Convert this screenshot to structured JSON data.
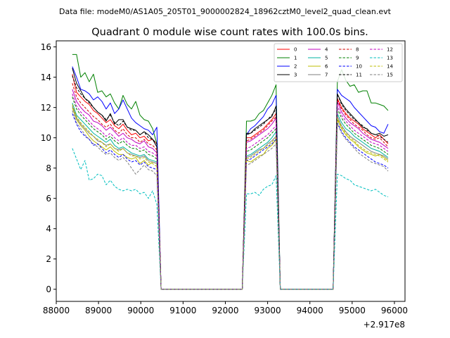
{
  "chart_data": {
    "type": "line",
    "suptitle": "Data file: modeM0/AS1A05_205T01_9000002824_18962cztM0_level2_quad_clean.evt",
    "title": "Quadrant 0 module wise count rates with 100.0s bins.",
    "xlabel": "",
    "ylabel": "",
    "x_offset_label": "+2.917e8",
    "xlim": [
      88000,
      96250
    ],
    "ylim": [
      -0.8,
      16.4
    ],
    "xticks": [
      88000,
      89000,
      90000,
      91000,
      92000,
      93000,
      94000,
      95000,
      96000
    ],
    "xtick_labels": [
      "88000",
      "89000",
      "90000",
      "91000",
      "92000",
      "93000",
      "94000",
      "95000",
      "96000"
    ],
    "yticks": [
      0,
      2,
      4,
      6,
      8,
      10,
      12,
      14,
      16
    ],
    "ytick_labels": [
      "0",
      "2",
      "4",
      "6",
      "8",
      "10",
      "12",
      "14",
      "16"
    ],
    "legend_position": "top-right",
    "segments": [
      {
        "start": 88380,
        "end": 90380,
        "length": 21
      },
      {
        "start": 92500,
        "end": 93200,
        "length": 8
      },
      {
        "start": 94650,
        "end": 95850,
        "length": 13
      }
    ],
    "series": [
      {
        "name": "0",
        "color": "#ff0000",
        "dash": "solid",
        "seg1": [
          14.2,
          13.0,
          12.7,
          12.4,
          12.2,
          11.8,
          11.6,
          11.3,
          11.0,
          11.2,
          10.8,
          10.6,
          10.9,
          10.5,
          10.2,
          10.3,
          10.0,
          10.1,
          9.8,
          9.9,
          9.6
        ],
        "seg2": [
          10.0,
          10.0,
          10.2,
          10.4,
          10.6,
          10.9,
          11.2,
          11.6
        ],
        "seg3": [
          12.6,
          12.0,
          11.6,
          11.3,
          11.1,
          10.9,
          10.6,
          10.4,
          10.2,
          10.0,
          10.2,
          9.9,
          9.6
        ]
      },
      {
        "name": "1",
        "color": "#008000",
        "dash": "solid",
        "seg1": [
          15.5,
          15.5,
          14.0,
          14.3,
          13.7,
          14.2,
          13.0,
          13.1,
          12.7,
          12.9,
          12.3,
          11.9,
          12.8,
          12.2,
          11.9,
          12.4,
          11.5,
          11.2,
          11.1,
          10.6,
          9.6
        ],
        "seg2": [
          11.1,
          11.1,
          11.2,
          11.6,
          11.8,
          12.3,
          12.8,
          13.5
        ],
        "seg3": [
          13.7,
          14.5,
          13.8,
          13.4,
          13.5,
          13.0,
          13.1,
          13.1,
          12.3,
          12.3,
          12.2,
          12.1,
          11.8
        ]
      },
      {
        "name": "2",
        "color": "#0000ff",
        "dash": "solid",
        "seg1": [
          14.7,
          14.0,
          13.2,
          13.1,
          12.9,
          12.5,
          12.7,
          12.4,
          11.9,
          12.3,
          11.6,
          11.9,
          12.5,
          11.9,
          11.3,
          11.0,
          10.8,
          10.6,
          10.5,
          10.2,
          10.7
        ],
        "seg2": [
          10.2,
          10.6,
          10.8,
          11.1,
          11.4,
          11.9,
          12.2,
          12.8
        ],
        "seg3": [
          13.2,
          12.8,
          12.6,
          12.4,
          12.0,
          11.7,
          11.4,
          11.1,
          10.8,
          10.7,
          10.4,
          10.3,
          10.9
        ]
      },
      {
        "name": "3",
        "color": "#000000",
        "dash": "solid",
        "seg1": [
          14.6,
          13.6,
          13.1,
          12.6,
          12.4,
          12.0,
          11.7,
          11.5,
          11.1,
          11.6,
          10.9,
          11.2,
          11.2,
          10.7,
          10.6,
          10.5,
          10.2,
          10.4,
          10.2,
          9.9,
          9.4
        ],
        "seg2": [
          10.3,
          10.3,
          10.6,
          10.8,
          11.0,
          11.2,
          11.4,
          12.1
        ],
        "seg3": [
          12.9,
          12.3,
          11.9,
          11.6,
          11.3,
          11.0,
          10.7,
          10.6,
          10.3,
          10.2,
          10.3,
          10.1,
          10.2
        ]
      },
      {
        "name": "4",
        "color": "#c000c0",
        "dash": "solid",
        "seg1": [
          13.2,
          12.4,
          12.0,
          11.7,
          11.5,
          11.1,
          11.0,
          10.8,
          10.5,
          10.7,
          10.4,
          10.1,
          10.3,
          10.0,
          9.9,
          9.7,
          9.6,
          9.8,
          9.4,
          9.3,
          9.0
        ],
        "seg2": [
          9.7,
          9.8,
          10.0,
          10.2,
          10.4,
          10.6,
          10.9,
          11.3
        ],
        "seg3": [
          12.4,
          11.7,
          11.3,
          11.0,
          10.8,
          10.6,
          10.3,
          10.1,
          9.9,
          9.8,
          9.7,
          9.5,
          9.3
        ]
      },
      {
        "name": "5",
        "color": "#00b3a0",
        "dash": "solid",
        "seg1": [
          12.3,
          11.5,
          11.2,
          10.9,
          10.6,
          10.3,
          10.1,
          9.9,
          9.7,
          9.9,
          9.5,
          9.3,
          9.4,
          9.2,
          9.0,
          8.9,
          8.8,
          8.9,
          8.6,
          8.5,
          8.4
        ],
        "seg2": [
          8.8,
          8.9,
          9.1,
          9.3,
          9.5,
          9.7,
          10.0,
          10.4
        ],
        "seg3": [
          11.6,
          11.0,
          10.6,
          10.4,
          10.1,
          9.9,
          9.7,
          9.5,
          9.3,
          9.2,
          9.1,
          8.9,
          8.7
        ]
      },
      {
        "name": "6",
        "color": "#bdbd00",
        "dash": "solid",
        "seg1": [
          12.0,
          11.2,
          10.8,
          10.5,
          10.1,
          9.8,
          9.6,
          9.4,
          9.2,
          9.4,
          9.1,
          8.9,
          8.9,
          8.7,
          8.6,
          8.7,
          8.3,
          8.5,
          8.2,
          8.4,
          8.3
        ],
        "seg2": [
          8.5,
          8.4,
          8.6,
          8.8,
          8.9,
          9.3,
          9.5,
          9.9
        ],
        "seg3": [
          11.2,
          10.6,
          10.2,
          9.9,
          9.7,
          9.4,
          9.2,
          9.0,
          8.9,
          8.8,
          8.9,
          8.7,
          8.5
        ]
      },
      {
        "name": "7",
        "color": "#7f7f7f",
        "dash": "solid",
        "seg1": [
          12.1,
          11.3,
          10.9,
          10.6,
          10.3,
          10.1,
          9.8,
          9.7,
          9.5,
          9.6,
          9.3,
          9.2,
          9.3,
          9.0,
          8.9,
          8.8,
          8.7,
          8.8,
          8.5,
          8.4,
          8.3
        ],
        "seg2": [
          8.7,
          8.8,
          9.0,
          9.2,
          9.3,
          9.6,
          9.8,
          10.1
        ],
        "seg3": [
          11.4,
          10.8,
          10.4,
          10.1,
          9.9,
          9.7,
          9.5,
          9.3,
          9.1,
          9.0,
          8.9,
          8.8,
          8.6
        ]
      },
      {
        "name": "8",
        "color": "#d00000",
        "dash": "dashed",
        "seg1": [
          13.6,
          12.7,
          12.3,
          12.0,
          11.7,
          11.4,
          11.2,
          10.9,
          10.7,
          10.9,
          10.5,
          10.3,
          10.6,
          10.2,
          10.0,
          10.0,
          9.7,
          9.9,
          9.6,
          9.5,
          9.2
        ],
        "seg2": [
          9.8,
          9.9,
          10.1,
          10.3,
          10.5,
          10.8,
          11.1,
          11.4
        ],
        "seg3": [
          12.5,
          11.9,
          11.5,
          11.2,
          10.9,
          10.7,
          10.5,
          10.2,
          10.0,
          9.9,
          10.0,
          9.7,
          9.4
        ]
      },
      {
        "name": "9",
        "color": "#008000",
        "dash": "dashed",
        "seg1": [
          12.7,
          11.9,
          11.5,
          11.2,
          10.9,
          10.6,
          10.4,
          10.2,
          9.9,
          10.1,
          9.8,
          9.6,
          9.8,
          9.5,
          9.3,
          9.3,
          9.1,
          9.2,
          8.9,
          8.8,
          8.6
        ],
        "seg2": [
          9.1,
          9.2,
          9.4,
          9.6,
          9.8,
          10.0,
          10.3,
          10.6
        ],
        "seg3": [
          11.9,
          11.3,
          10.9,
          10.6,
          10.3,
          10.1,
          9.9,
          9.7,
          9.5,
          9.4,
          9.3,
          9.1,
          8.9
        ]
      },
      {
        "name": "10",
        "color": "#0000ff",
        "dash": "dashed",
        "seg1": [
          11.6,
          10.9,
          10.4,
          10.1,
          9.9,
          9.5,
          9.6,
          9.3,
          9.0,
          9.2,
          8.9,
          8.7,
          8.9,
          8.6,
          8.4,
          8.5,
          8.2,
          8.4,
          8.1,
          8.0,
          7.9
        ],
        "seg2": [
          8.5,
          8.6,
          8.8,
          9.0,
          9.2,
          9.4,
          9.6,
          9.9
        ],
        "seg3": [
          11.0,
          10.4,
          10.0,
          9.7,
          9.4,
          9.2,
          9.0,
          8.8,
          8.6,
          8.4,
          8.3,
          8.2,
          8.0
        ]
      },
      {
        "name": "11",
        "color": "#000000",
        "dash": "dashed",
        "seg1": [
          14.1,
          13.3,
          12.9,
          12.6,
          12.3,
          12.0,
          11.7,
          11.5,
          11.2,
          11.5,
          11.0,
          10.8,
          11.1,
          10.7,
          10.5,
          10.5,
          10.2,
          10.4,
          10.0,
          9.9,
          9.6
        ],
        "seg2": [
          10.2,
          10.3,
          10.5,
          10.7,
          10.9,
          11.2,
          11.5,
          11.9
        ],
        "seg3": [
          12.9,
          12.2,
          11.8,
          11.5,
          11.2,
          11.0,
          10.8,
          10.5,
          10.3,
          10.2,
          10.1,
          9.9,
          9.7
        ]
      },
      {
        "name": "12",
        "color": "#c000c0",
        "dash": "dashed",
        "seg1": [
          12.9,
          12.1,
          11.7,
          11.4,
          11.1,
          10.8,
          10.6,
          10.4,
          10.1,
          10.3,
          10.0,
          9.8,
          10.0,
          9.7,
          9.5,
          9.5,
          9.3,
          9.4,
          9.1,
          9.0,
          8.8
        ],
        "seg2": [
          9.3,
          9.4,
          9.6,
          9.8,
          10.0,
          10.2,
          10.5,
          10.8
        ],
        "seg3": [
          12.1,
          11.5,
          11.1,
          10.8,
          10.5,
          10.3,
          10.1,
          9.9,
          9.7,
          9.6,
          9.5,
          9.3,
          9.1
        ]
      },
      {
        "name": "13",
        "color": "#00bfbf",
        "dash": "dashed",
        "seg1": [
          9.3,
          8.6,
          7.9,
          8.5,
          7.2,
          7.3,
          7.6,
          7.5,
          6.9,
          7.2,
          6.8,
          6.6,
          6.5,
          6.6,
          6.5,
          6.6,
          6.3,
          6.4,
          6.0,
          6.5,
          5.6
        ],
        "seg2": [
          6.3,
          6.3,
          6.4,
          6.2,
          6.6,
          6.8,
          6.9,
          7.5
        ],
        "seg3": [
          7.6,
          7.5,
          7.3,
          7.2,
          6.9,
          6.8,
          6.7,
          6.6,
          6.5,
          6.6,
          6.4,
          6.2,
          6.1
        ]
      },
      {
        "name": "14",
        "color": "#bdbd00",
        "dash": "dashed",
        "seg1": [
          12.2,
          11.4,
          11.0,
          10.7,
          10.4,
          10.1,
          9.9,
          9.7,
          9.4,
          9.6,
          9.3,
          9.1,
          9.3,
          9.0,
          8.8,
          8.8,
          8.6,
          8.7,
          8.4,
          8.3,
          8.1
        ],
        "seg2": [
          8.6,
          8.7,
          8.9,
          9.1,
          9.3,
          9.5,
          9.7,
          10.0
        ],
        "seg3": [
          11.3,
          10.7,
          10.3,
          10.0,
          9.8,
          9.5,
          9.3,
          9.1,
          9.0,
          8.9,
          8.8,
          8.6,
          8.4
        ]
      },
      {
        "name": "15",
        "color": "#7f7f7f",
        "dash": "dashed",
        "seg1": [
          11.8,
          11.0,
          10.6,
          10.2,
          9.9,
          9.6,
          9.4,
          9.1,
          8.9,
          9.0,
          8.7,
          8.5,
          8.7,
          8.4,
          8.0,
          7.6,
          7.9,
          8.2,
          7.9,
          7.8,
          7.5
        ],
        "seg2": [
          8.2,
          8.3,
          8.5,
          8.7,
          8.9,
          9.1,
          9.3,
          9.6
        ],
        "seg3": [
          10.9,
          10.3,
          9.9,
          9.6,
          9.3,
          9.0,
          8.8,
          8.6,
          8.4,
          8.3,
          8.2,
          8.1,
          7.8
        ]
      }
    ]
  }
}
